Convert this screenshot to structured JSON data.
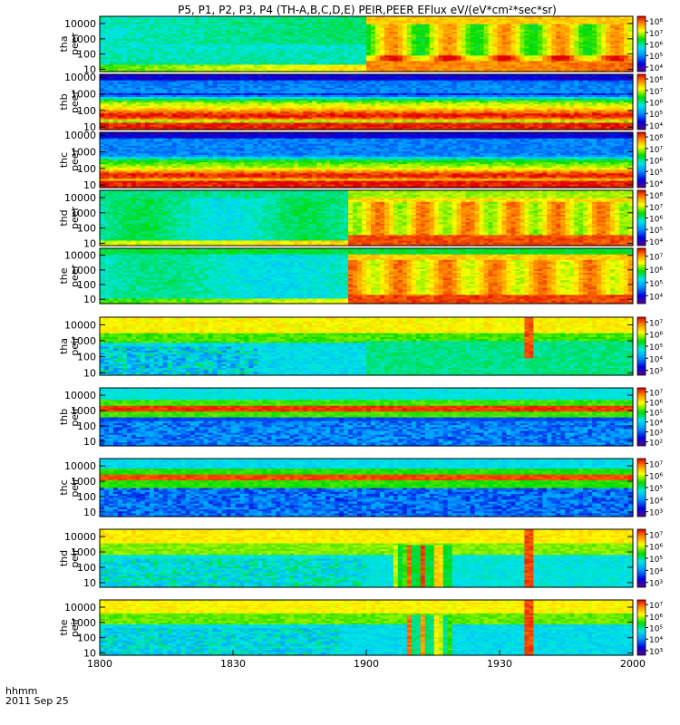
{
  "chart_data": {
    "type": "heatmap",
    "title": "P5, P1, P2, P3, P4 (TH-A,B,C,D,E) PEIR,PEER EFlux eV/(eV*cm²*sec*sr)",
    "date_label": "2011 Sep 25",
    "xaxis_unit": "hhmm",
    "x_ticks": [
      "1800",
      "1830",
      "1900",
      "1930",
      "2000"
    ],
    "x_tick_values": [
      0,
      30,
      60,
      90,
      120
    ],
    "xlim": [
      0,
      120
    ],
    "y_scale": "log",
    "colorscale": "rainbow (purple-blue-cyan-green-yellow-red)",
    "panels": [
      {
        "probe": "tha",
        "species": "peer",
        "ylim": [
          7,
          30000
        ],
        "yticks": [
          "10",
          "100",
          "1000",
          "10000"
        ],
        "ytick_values": [
          10,
          100,
          1000,
          10000
        ],
        "cbar_ticks": [
          "10⁴",
          "10⁵",
          "10⁶",
          "10⁷",
          "10⁸"
        ],
        "cbar_exps": [
          4,
          5,
          6,
          7,
          8
        ],
        "cbar_range": [
          3.6,
          8.4
        ]
      },
      {
        "probe": "thb",
        "species": "peer",
        "ylim": [
          7,
          15000
        ],
        "yticks": [
          "10",
          "100",
          "1000",
          "10000"
        ],
        "ytick_values": [
          10,
          100,
          1000,
          10000
        ],
        "cbar_ticks": [
          "10⁴",
          "10⁵",
          "10⁶",
          "10⁷",
          "10⁸"
        ],
        "cbar_exps": [
          4,
          5,
          6,
          7,
          8
        ],
        "cbar_range": [
          3.6,
          8.4
        ]
      },
      {
        "probe": "thc",
        "species": "peer",
        "ylim": [
          7,
          15000
        ],
        "yticks": [
          "10",
          "100",
          "1000",
          "10000"
        ],
        "ytick_values": [
          10,
          100,
          1000,
          10000
        ],
        "cbar_ticks": [
          "10⁴",
          "10⁵",
          "10⁶",
          "10⁷",
          "10⁸"
        ],
        "cbar_exps": [
          4,
          5,
          6,
          7,
          8
        ],
        "cbar_range": [
          3.6,
          8.4
        ]
      },
      {
        "probe": "thd",
        "species": "peer",
        "ylim": [
          7,
          30000
        ],
        "yticks": [
          "10",
          "100",
          "1000",
          "10000"
        ],
        "ytick_values": [
          10,
          100,
          1000,
          10000
        ],
        "cbar_ticks": [
          "10⁴",
          "10⁵",
          "10⁶",
          "10⁷",
          "10⁸"
        ],
        "cbar_exps": [
          4,
          5,
          6,
          7,
          8
        ],
        "cbar_range": [
          3.6,
          8.4
        ]
      },
      {
        "probe": "the",
        "species": "peer",
        "ylim": [
          5,
          30000
        ],
        "yticks": [
          "10",
          "100",
          "1000",
          "10000"
        ],
        "ytick_values": [
          10,
          100,
          1000,
          10000
        ],
        "cbar_ticks": [
          "10⁴",
          "10⁵",
          "10⁶",
          "10⁷"
        ],
        "cbar_exps": [
          4,
          5,
          6,
          7
        ],
        "cbar_range": [
          3.4,
          7.6
        ]
      },
      {
        "probe": "tha",
        "species": "peir",
        "ylim": [
          7,
          30000
        ],
        "yticks": [
          "10",
          "100",
          "1000",
          "10000"
        ],
        "ytick_values": [
          10,
          100,
          1000,
          10000
        ],
        "cbar_ticks": [
          "10³",
          "10⁴",
          "10⁵",
          "10⁶",
          "10⁷"
        ],
        "cbar_exps": [
          3,
          4,
          5,
          6,
          7
        ],
        "cbar_range": [
          2.6,
          7.4
        ]
      },
      {
        "probe": "thb",
        "species": "peir",
        "ylim": [
          5,
          30000
        ],
        "yticks": [
          "10",
          "100",
          "1000",
          "10000"
        ],
        "ytick_values": [
          10,
          100,
          1000,
          10000
        ],
        "cbar_ticks": [
          "10²",
          "10³",
          "10⁴",
          "10⁵",
          "10⁶",
          "10⁷"
        ],
        "cbar_exps": [
          2,
          3,
          4,
          5,
          6,
          7
        ],
        "cbar_range": [
          1.6,
          7.4
        ]
      },
      {
        "probe": "thc",
        "species": "peir",
        "ylim": [
          5,
          30000
        ],
        "yticks": [
          "10",
          "100",
          "1000",
          "10000"
        ],
        "ytick_values": [
          10,
          100,
          1000,
          10000
        ],
        "cbar_ticks": [
          "10³",
          "10⁴",
          "10⁵",
          "10⁶",
          "10⁷"
        ],
        "cbar_exps": [
          3,
          4,
          5,
          6,
          7
        ],
        "cbar_range": [
          2.6,
          7.4
        ]
      },
      {
        "probe": "thd",
        "species": "peir",
        "ylim": [
          5,
          30000
        ],
        "yticks": [
          "10",
          "100",
          "1000",
          "10000"
        ],
        "ytick_values": [
          10,
          100,
          1000,
          10000
        ],
        "cbar_ticks": [
          "10³",
          "10⁴",
          "10⁵",
          "10⁶",
          "10⁷"
        ],
        "cbar_exps": [
          3,
          4,
          5,
          6,
          7
        ],
        "cbar_range": [
          2.6,
          7.4
        ]
      },
      {
        "probe": "the",
        "species": "peir",
        "ylim": [
          7,
          30000
        ],
        "yticks": [
          "10",
          "100",
          "1000",
          "10000"
        ],
        "ytick_values": [
          10,
          100,
          1000,
          10000
        ],
        "cbar_ticks": [
          "10³",
          "10⁴",
          "10⁵",
          "10⁶",
          "10⁷"
        ],
        "cbar_exps": [
          3,
          4,
          5,
          6,
          7
        ],
        "cbar_range": [
          2.6,
          7.4
        ]
      }
    ]
  }
}
